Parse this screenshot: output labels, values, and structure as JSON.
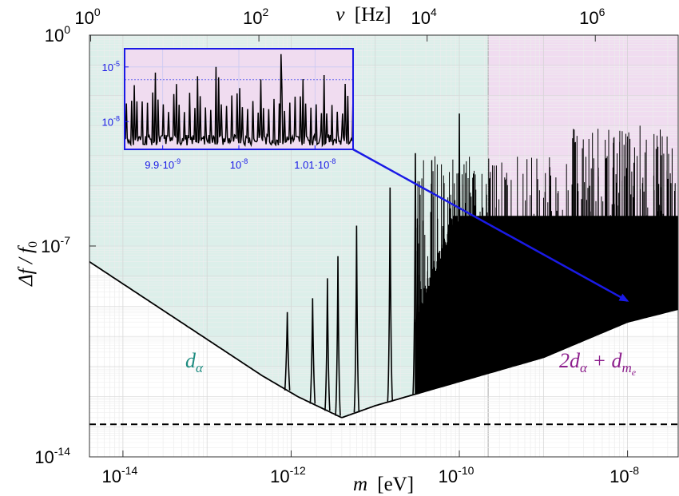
{
  "chart_data": {
    "type": "line",
    "xscale": "log",
    "yscale": "log",
    "xlim": [
      4e-15,
      4e-08
    ],
    "ylim": [
      1e-14,
      1
    ],
    "x_ticks": [
      1e-14,
      1e-12,
      1e-10,
      1e-08
    ],
    "y_ticks": [
      1e-14,
      1e-07,
      1
    ],
    "x_tick_labels": [
      {
        "base": "10",
        "exp": "-14"
      },
      {
        "base": "10",
        "exp": "-12"
      },
      {
        "base": "10",
        "exp": "-10"
      },
      {
        "base": "10",
        "exp": "-8"
      }
    ],
    "y_tick_labels": [
      {
        "base": "10",
        "exp": "-14"
      },
      {
        "base": "10",
        "exp": "-7"
      },
      {
        "base": "10",
        "exp": "0"
      }
    ],
    "top_axis_ticks": [
      1,
      100,
      10000,
      1000000
    ],
    "top_axis_tick_labels": [
      {
        "base": "10",
        "exp": "0"
      },
      {
        "base": "10",
        "exp": "2"
      },
      {
        "base": "10",
        "exp": "4"
      },
      {
        "base": "10",
        "exp": "6"
      }
    ],
    "labels": {
      "xlabel": {
        "var": "m",
        "unit": "[eV]"
      },
      "ylabel": "Δf / f",
      "ylabel_sub": "0",
      "top_xlabel": {
        "var": "ν",
        "unit": "[Hz]"
      }
    },
    "grid": true,
    "colors": {
      "region_alpha": "#dcefea",
      "region_combined": "#f0dcf0",
      "label_alpha": "#1e8c80",
      "label_combined": "#8c1e8c",
      "curve": "#000000",
      "arrow": "#1a1ae6"
    },
    "regions": [
      {
        "name": "d_alpha",
        "x": [
          4e-15,
          2.2e-10
        ]
      },
      {
        "name": "2d_alpha + d_me",
        "x": [
          2.2e-10,
          4e-08
        ]
      }
    ],
    "region_labels": [
      {
        "text": "d",
        "sub": "α",
        "x": 4e-14,
        "y": 1.5e-11
      },
      {
        "text": "2d",
        "sub": "α",
        "text2": " + d",
        "sub2": "m",
        "subsub": "e",
        "x": 1e-08,
        "y": 1.5e-11
      }
    ],
    "envelope": {
      "points": [
        {
          "m": 4e-15,
          "y": 3e-08
        },
        {
          "m": 4.5e-13,
          "y": 5e-12
        },
        {
          "m": 1.2e-12,
          "y": 1e-12
        },
        {
          "m": 4e-12,
          "y": 2e-13
        },
        {
          "m": 1e-11,
          "y": 5e-13
        },
        {
          "m": 1e-09,
          "y": 2e-11
        },
        {
          "m": 1e-08,
          "y": 3e-10
        },
        {
          "m": 4e-08,
          "y": 8e-10
        }
      ]
    },
    "peaks": {
      "resonances_m": [
        9e-13,
        1.8e-12,
        2.7e-12,
        3.6e-12,
        6e-12,
        1.5e-11,
        3e-11,
        1e-10
      ],
      "band_start_m": 3e-11,
      "band_end_m": 4e-08,
      "max_y": 1
    },
    "reference_line": {
      "y": 1.2e-13,
      "style": "dashed"
    },
    "arrow": {
      "from_m": 1.1e-10,
      "from_y": 0.018,
      "to_m": 1e-08,
      "to_y": 1.5e-09
    },
    "inset": {
      "xlim": [
        9.85e-09,
        1.015e-08
      ],
      "ylim": [
        3e-10,
        0.0001
      ],
      "y_ticks": [
        1e-05,
        1e-08
      ],
      "x_tick_labels": [
        "9.9·10",
        "10",
        "1.01·10"
      ],
      "x_tick_exps": [
        "-9",
        "-8",
        "-8"
      ],
      "x_ticks": [
        9.9e-09,
        1e-08,
        1.01e-08
      ],
      "y_tick_labels": [
        {
          "base": "10",
          "exp": "-5"
        },
        {
          "base": "10",
          "exp": "-8"
        }
      ],
      "threshold_y": 2e-06
    }
  }
}
